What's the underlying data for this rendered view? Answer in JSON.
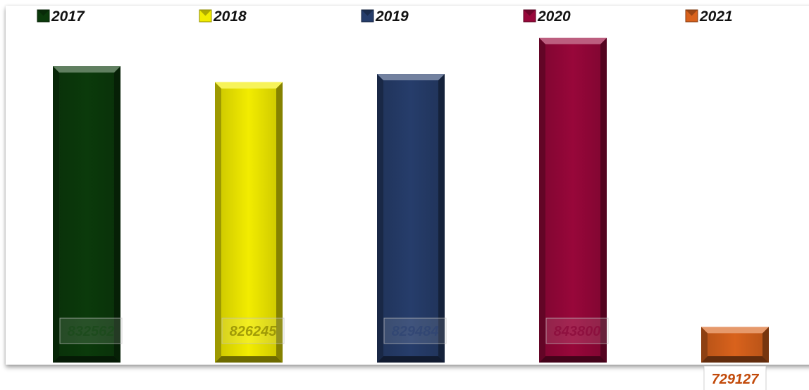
{
  "chart_data": {
    "type": "bar",
    "title": "",
    "xlabel": "",
    "ylabel": "",
    "categories": [
      "2017",
      "2018",
      "2019",
      "2020",
      "2021"
    ],
    "values": [
      832562,
      826245,
      829484,
      843800,
      729127
    ],
    "labels": [
      "832562",
      "826245",
      "829484",
      "843800",
      "729127"
    ],
    "colors": [
      "#0b3a0b",
      "#f2ec00",
      "#263d6b",
      "#98073a",
      "#d9621c"
    ],
    "label_colors": [
      "#1a4a1a",
      "#8a8400",
      "#2f4473",
      "#8a0a3a",
      "#c24a0a"
    ],
    "legend": {
      "position": "top",
      "entries": [
        "2017",
        "2018",
        "2019",
        "2020",
        "2021"
      ]
    },
    "ylim": [
      715000,
      846000
    ],
    "grid": false,
    "value_axis_visible": false,
    "category_axis_visible": false
  }
}
